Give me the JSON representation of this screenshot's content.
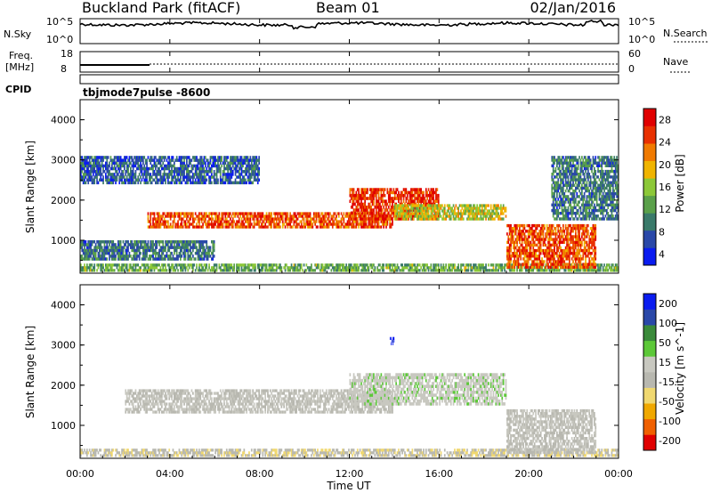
{
  "header": {
    "site": "Buckland Park (fitACF)",
    "beam": "Beam 01",
    "date": "02/Jan/2016"
  },
  "labels": {
    "nsky": "N.Sky",
    "nsky_hi": "10^5",
    "nsky_lo": "10^0",
    "nsearch": "N.Search",
    "nsearch_hi": "10^5",
    "nsearch_lo": "10^0",
    "freq_top": "Freq.",
    "freq_unit": "[MHz]",
    "freq_hi": "18",
    "freq_lo": "8",
    "nave": "Nave",
    "nave_hi": "60",
    "nave_lo": "0",
    "cpid": "CPID",
    "cpid_value": "tbjmode7pulse -8600"
  },
  "colors": {
    "power": [
      "#0a1cf0",
      "#2a48a8",
      "#3a7a6a",
      "#5aa04a",
      "#8cc838",
      "#f0b400",
      "#f07a00",
      "#e83000",
      "#e00000"
    ],
    "velocity": [
      "#e00000",
      "#f06000",
      "#f0a800",
      "#f0d870",
      "#b8b8b0",
      "#c8c8c0",
      "#5cc838",
      "#3a8a3a",
      "#2a48a8",
      "#0a1cf0"
    ]
  },
  "chart_data": [
    {
      "type": "heatmap",
      "name": "power",
      "xlabel": "",
      "ylabel": "Slant Range [km]",
      "xlim": [
        "00:00",
        "24:00"
      ],
      "ylim": [
        180,
        4500
      ],
      "yticks": [
        "1000",
        "2000",
        "3000",
        "4000"
      ],
      "colorbar": {
        "label": "Power [dB]",
        "ticks": [
          "28",
          "24",
          "20",
          "16",
          "12",
          "8",
          "4"
        ],
        "range": [
          0,
          30
        ]
      },
      "bands": [
        {
          "t0": 0,
          "t1": 24,
          "r0": 220,
          "r1": 420,
          "value": 12
        },
        {
          "t0": 0,
          "t1": 6,
          "r0": 500,
          "r1": 1000,
          "value": 8
        },
        {
          "t0": 3,
          "t1": 14,
          "r0": 1300,
          "r1": 1700,
          "value": 24
        },
        {
          "t0": 12,
          "t1": 16,
          "r0": 1500,
          "r1": 2300,
          "value": 26
        },
        {
          "t0": 14,
          "t1": 19,
          "r0": 1500,
          "r1": 1900,
          "value": 16
        },
        {
          "t0": 19,
          "t1": 23,
          "r0": 300,
          "r1": 1400,
          "value": 24
        },
        {
          "t0": 0,
          "t1": 8,
          "r0": 2400,
          "r1": 3100,
          "value": 6
        },
        {
          "t0": 21,
          "t1": 24,
          "r0": 1500,
          "r1": 3100,
          "value": 8
        }
      ]
    },
    {
      "type": "heatmap",
      "name": "velocity",
      "xlabel": "Time UT",
      "ylabel": "Slant Range [km]",
      "xlim": [
        "00:00",
        "24:00"
      ],
      "xticks": [
        "00:00",
        "04:00",
        "08:00",
        "12:00",
        "16:00",
        "20:00",
        "00:00"
      ],
      "ylim": [
        180,
        4500
      ],
      "yticks": [
        "1000",
        "2000",
        "3000",
        "4000"
      ],
      "colorbar": {
        "label": "Velocity [m s^-1]",
        "ticks": [
          "200",
          "100",
          "50",
          "15",
          "-15",
          "-50",
          "-100",
          "-200"
        ],
        "range": [
          -250,
          250
        ]
      },
      "bands": [
        {
          "t0": 0,
          "t1": 24,
          "r0": 220,
          "r1": 420,
          "value": -40
        },
        {
          "t0": 2,
          "t1": 14,
          "r0": 1300,
          "r1": 1900,
          "value": 0
        },
        {
          "t0": 12,
          "t1": 19,
          "r0": 1500,
          "r1": 2300,
          "value": 30
        },
        {
          "t0": 19,
          "t1": 23,
          "r0": 300,
          "r1": 1400,
          "value": 0
        },
        {
          "t0": 13.8,
          "t1": 14,
          "r0": 3000,
          "r1": 3200,
          "value": 220
        }
      ]
    }
  ]
}
